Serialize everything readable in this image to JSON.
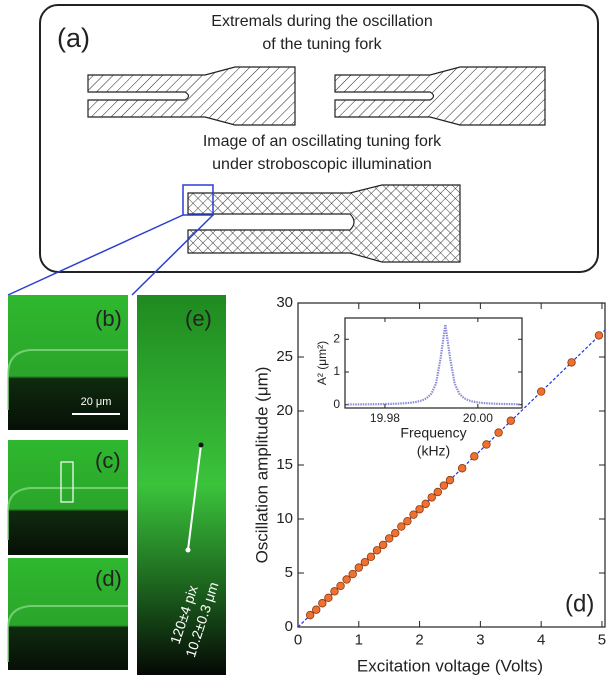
{
  "figure": {
    "panel_a": {
      "label": "(a)",
      "caption_top": [
        "Extremals during the oscillation",
        "of the tuning fork"
      ],
      "caption_bottom": [
        "Image of an oscillating tuning fork",
        "under stroboscopic illumination"
      ]
    },
    "micrographs": {
      "b": "(b)",
      "c": "(c)",
      "d": "(d)",
      "e": "(e)",
      "scale_bar": "20 μm",
      "measurement": [
        "120±4 pix",
        "10.2±0.3 μm"
      ]
    }
  },
  "chart_data": [
    {
      "type": "scatter",
      "annotation": "(d)",
      "x_label": "Excitation voltage (Volts)",
      "y_label": "Oscillation amplitude (μm)",
      "x": [
        0.2,
        0.3,
        0.4,
        0.5,
        0.6,
        0.7,
        0.8,
        0.9,
        1.0,
        1.1,
        1.2,
        1.3,
        1.4,
        1.5,
        1.6,
        1.7,
        1.8,
        1.9,
        2.0,
        2.1,
        2.2,
        2.3,
        2.4,
        2.5,
        2.7,
        2.9,
        3.1,
        3.3,
        3.5,
        4.0,
        4.5,
        4.95
      ],
      "values": [
        1.1,
        1.6,
        2.2,
        2.7,
        3.3,
        3.8,
        4.4,
        4.9,
        5.5,
        6.0,
        6.5,
        7.1,
        7.6,
        8.2,
        8.7,
        9.3,
        9.8,
        10.4,
        10.9,
        11.4,
        12.0,
        12.5,
        13.1,
        13.6,
        14.7,
        15.8,
        16.9,
        18.0,
        19.1,
        21.8,
        24.5,
        27.0
      ],
      "color": "#f07030",
      "fit": {
        "x": [
          0,
          5.05
        ],
        "values": [
          0,
          27.5
        ],
        "color": "#2030e0"
      },
      "xlim": [
        0,
        5.05
      ],
      "ylim": [
        0,
        30
      ],
      "xticks": [
        0,
        1,
        2,
        3,
        4,
        5
      ],
      "yticks": [
        0,
        5,
        10,
        15,
        20,
        25,
        30
      ]
    },
    {
      "type": "line",
      "x_label": [
        "Frequency",
        "(kHz)"
      ],
      "y_label": "A² (μm²)",
      "x": [
        19.972,
        19.973,
        19.974,
        19.975,
        19.976,
        19.977,
        19.978,
        19.979,
        19.98,
        19.981,
        19.982,
        19.983,
        19.984,
        19.985,
        19.986,
        19.987,
        19.988,
        19.989,
        19.99,
        19.991,
        19.992,
        19.993,
        19.994,
        19.995,
        19.996,
        19.997,
        19.998,
        19.999,
        20.0,
        20.001,
        20.002,
        20.003,
        20.004,
        20.005,
        20.006,
        20.007,
        20.008,
        20.009
      ],
      "values": [
        0.008,
        0.009,
        0.01,
        0.011,
        0.012,
        0.014,
        0.016,
        0.018,
        0.021,
        0.024,
        0.029,
        0.035,
        0.043,
        0.054,
        0.07,
        0.094,
        0.133,
        0.202,
        0.338,
        0.648,
        1.446,
        2.45,
        1.446,
        0.648,
        0.338,
        0.202,
        0.133,
        0.094,
        0.07,
        0.054,
        0.043,
        0.035,
        0.029,
        0.024,
        0.021,
        0.018,
        0.016,
        0.014
      ],
      "color": "#8a8ad8",
      "xlim": [
        19.9714,
        20.0095
      ],
      "ylim": [
        -0.1,
        2.65
      ],
      "xticks": [
        19.98,
        {
          "value": 20,
          "label": "20.00"
        }
      ],
      "yticks": [
        0,
        1,
        2
      ]
    }
  ]
}
